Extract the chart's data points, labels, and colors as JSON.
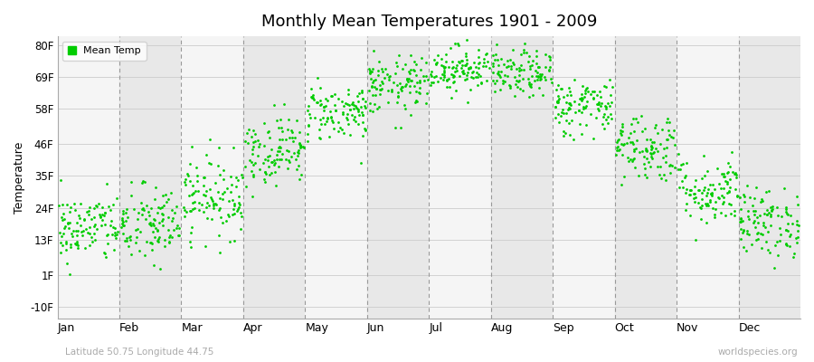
{
  "title": "Monthly Mean Temperatures 1901 - 2009",
  "ylabel": "Temperature",
  "xlabel_bottom_left": "Latitude 50.75 Longitude 44.75",
  "xlabel_bottom_right": "worldspecies.org",
  "legend_label": "Mean Temp",
  "dot_color": "#00cc00",
  "band_color_odd": "#e8e8e8",
  "band_color_even": "#f5f5f5",
  "background_color": "#ffffff",
  "plot_bg_color": "#ffffff",
  "ytick_labels": [
    "-10F",
    "1F",
    "13F",
    "24F",
    "35F",
    "46F",
    "58F",
    "69F",
    "80F"
  ],
  "ytick_values": [
    -10,
    1,
    13,
    24,
    35,
    46,
    58,
    69,
    80
  ],
  "ylim": [
    -14,
    83
  ],
  "months": [
    "Jan",
    "Feb",
    "Mar",
    "Apr",
    "May",
    "Jun",
    "Jul",
    "Aug",
    "Sep",
    "Oct",
    "Nov",
    "Dec"
  ],
  "month_tick_positions": [
    0,
    1,
    2,
    3,
    4,
    5,
    6,
    7,
    8,
    9,
    10,
    11
  ],
  "month_boundaries": [
    0,
    1,
    2,
    3,
    4,
    5,
    6,
    7,
    8,
    9,
    10,
    11,
    12
  ],
  "num_years": 109,
  "seed": 42,
  "mean_temps_F": [
    17,
    18,
    28,
    44,
    57,
    66,
    72,
    70,
    59,
    45,
    30,
    19
  ],
  "spreads": [
    6,
    7,
    7,
    6,
    5,
    5,
    4,
    4,
    5,
    6,
    6,
    6
  ]
}
